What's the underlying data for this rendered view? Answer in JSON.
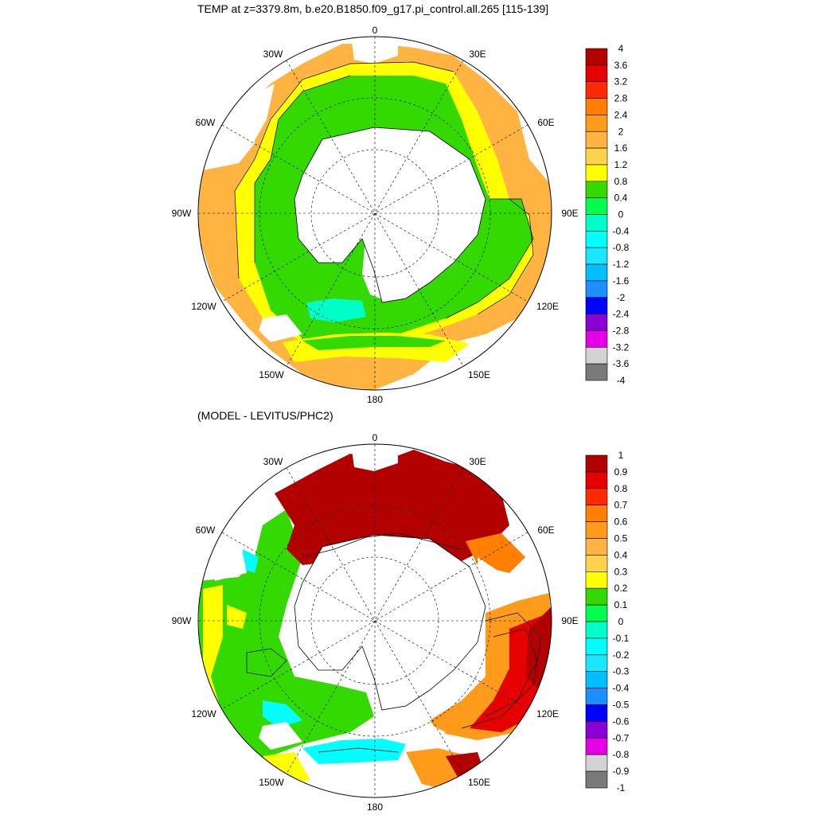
{
  "titles": {
    "top": "TEMP at z=3379.8m, b.e20.B1850.f09_g17.pi_control.all.265 [115-139]",
    "bottom": "(MODEL - LEVITUS/PHC2)"
  },
  "longitude_labels": {
    "0": "0",
    "30E": "30E",
    "60E": "60E",
    "90E": "90E",
    "120E": "120E",
    "150E": "150E",
    "180": "180",
    "150W": "150W",
    "120W": "120W",
    "90W": "90W",
    "60W": "60W",
    "30W": "30W"
  },
  "colors": {
    "land": "#ffffff",
    "map_border": "#000000",
    "grid": "#000000"
  },
  "colorbar_top": {
    "labels": [
      "4",
      "3.6",
      "3.2",
      "2.8",
      "2.4",
      "2",
      "1.6",
      "1.2",
      "0.8",
      "0.4",
      "0",
      "-0.4",
      "-0.8",
      "-1.2",
      "-1.6",
      "-2",
      "-2.4",
      "-2.8",
      "-3.2",
      "-3.6",
      "-4"
    ],
    "colors": [
      "#b30000",
      "#e60000",
      "#ff2a00",
      "#ff7f00",
      "#ff9b1a",
      "#ffb340",
      "#ffd24d",
      "#ffff00",
      "#33d900",
      "#00ff4d",
      "#00ffc8",
      "#00ffff",
      "#19e6ff",
      "#00bfff",
      "#1e8fff",
      "#0000ff",
      "#8a00d4",
      "#e600e6",
      "#d3d3d3",
      "#7a7a7a"
    ]
  },
  "colorbar_bottom": {
    "labels": [
      "1",
      "0.9",
      "0.8",
      "0.7",
      "0.6",
      "0.5",
      "0.4",
      "0.3",
      "0.2",
      "0.1",
      "0",
      "-0.1",
      "-0.2",
      "-0.3",
      "-0.4",
      "-0.5",
      "-0.6",
      "-0.7",
      "-0.8",
      "-0.9",
      "-1"
    ],
    "colors": [
      "#b30000",
      "#e60000",
      "#ff2a00",
      "#ff7f00",
      "#ff9b1a",
      "#ffb340",
      "#ffd24d",
      "#ffff00",
      "#33d900",
      "#00ff4d",
      "#00ffc8",
      "#00ffff",
      "#19e6ff",
      "#00bfff",
      "#1e8fff",
      "#0000ff",
      "#8a00d4",
      "#e600e6",
      "#d3d3d3",
      "#7a7a7a"
    ]
  }
}
